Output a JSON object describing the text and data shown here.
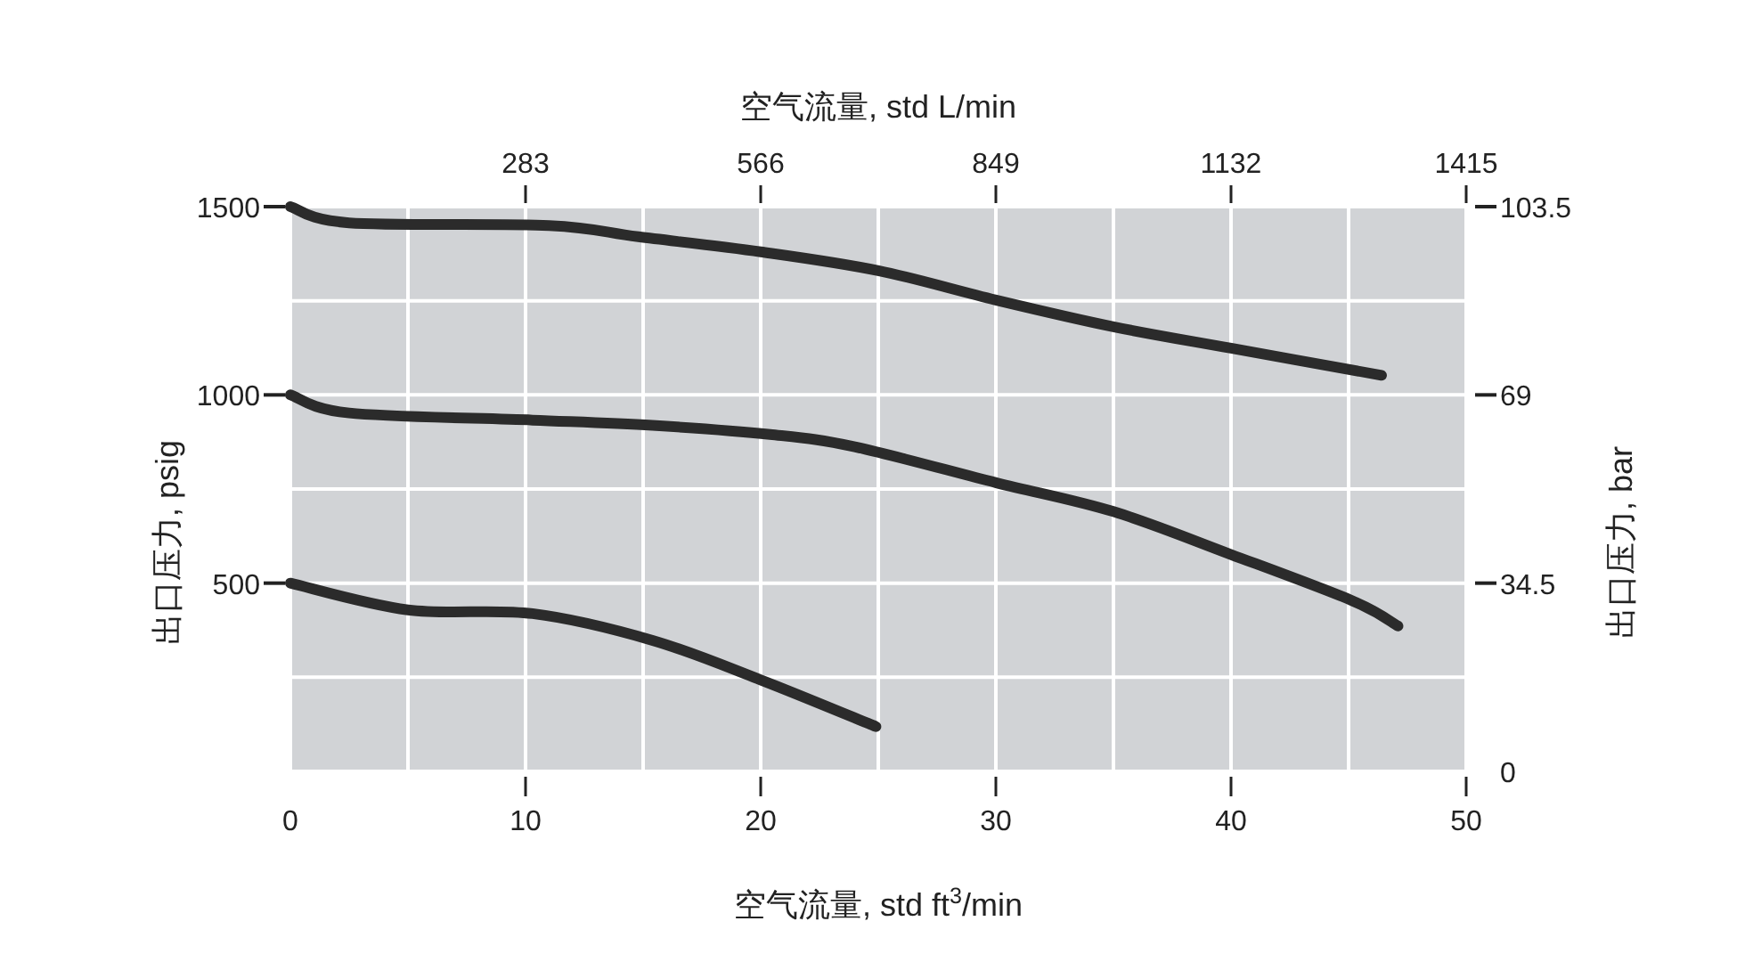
{
  "chart_data": {
    "type": "line",
    "xlabel": "空气流量, std ft$^{3}$/min",
    "x2label": "空气流量, std L/min",
    "ylabel": "出口压力, psig",
    "y2label": "出口压力, bar",
    "xlim": [
      0,
      50
    ],
    "xticks": [
      0,
      {
        "value": 5,
        "label": null
      },
      10,
      {
        "value": 15,
        "label": null
      },
      20,
      {
        "value": 25,
        "label": null
      },
      30,
      {
        "value": 35,
        "label": null
      },
      40,
      {
        "value": 45,
        "label": null
      },
      50
    ],
    "x2lim": [
      0,
      1415
    ],
    "x2ticks": [
      283,
      566,
      849,
      1132,
      1415
    ],
    "ylim": [
      0,
      1500
    ],
    "yticks": [
      {
        "value": 0,
        "label": null
      },
      {
        "value": 250,
        "label": null
      },
      500,
      {
        "value": 750,
        "label": null
      },
      1000,
      {
        "value": 1250,
        "label": null
      },
      1500
    ],
    "y2lim": [
      0,
      103.5
    ],
    "y2ticks": [
      0,
      34.5,
      69,
      103.5
    ],
    "grid": true,
    "marker": "none",
    "line_style": "solid",
    "series": [
      {
        "color": "#2b2b2b",
        "x": [
          0,
          2.5,
          11,
          14.8,
          20,
          25,
          30,
          35,
          40,
          46.4
        ],
        "values": [
          1500,
          1457,
          1450,
          1420,
          1380,
          1330,
          1252,
          1181,
          1124,
          1052
        ]
      },
      {
        "color": "#2b2b2b",
        "x": [
          0,
          2.5,
          10.3,
          15.4,
          20.4,
          24,
          30,
          35,
          40,
          45.2,
          47.1
        ],
        "values": [
          1000,
          952,
          933,
          919,
          895,
          862,
          767,
          690,
          576,
          452,
          386
        ]
      },
      {
        "color": "#2b2b2b",
        "x": [
          0,
          5,
          10.3,
          15.4,
          20,
          24.9
        ],
        "values": [
          500,
          429,
          419,
          348,
          243,
          119
        ]
      }
    ]
  }
}
